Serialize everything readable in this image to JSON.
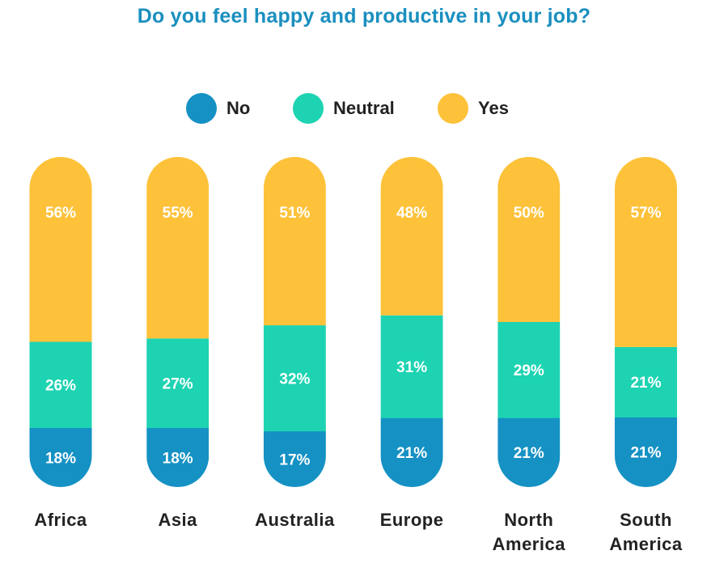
{
  "chart_data": {
    "type": "bar",
    "stacked": true,
    "orientation": "vertical",
    "title": "Do you feel happy and productive in your job?",
    "categories": [
      "Africa",
      "Asia",
      "Australia",
      "Europe",
      "North America",
      "South America"
    ],
    "series": [
      {
        "name": "No",
        "color": "#1591c4",
        "values": [
          18,
          18,
          17,
          21,
          21,
          21
        ],
        "labels": [
          "18%",
          "18%",
          "17%",
          "21%",
          "21%",
          "21%"
        ]
      },
      {
        "name": "Neutral",
        "color": "#1dd3b2",
        "values": [
          26,
          27,
          32,
          31,
          29,
          21
        ],
        "labels": [
          "26%",
          "27%",
          "32%",
          "31%",
          "29%",
          "21%"
        ]
      },
      {
        "name": "Yes",
        "color": "#fdc23a",
        "values": [
          56,
          55,
          51,
          48,
          50,
          57
        ],
        "labels": [
          "56%",
          "55%",
          "51%",
          "48%",
          "50%",
          "57%"
        ]
      }
    ],
    "legend_position": "top-center",
    "xlabel": "",
    "ylabel": "",
    "ylim": [
      0,
      100
    ],
    "grid": false
  },
  "label_color": "#ffffff",
  "text_color": "#222222",
  "title_color": "#1a8fbf"
}
